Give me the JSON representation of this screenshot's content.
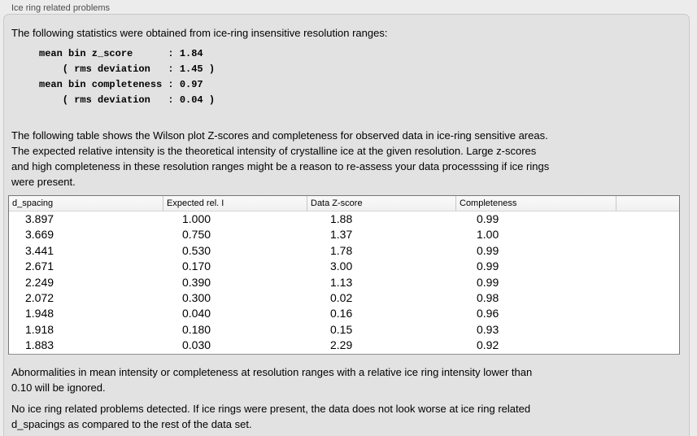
{
  "colors": {
    "page_bg": "#ececec",
    "panel_bg": "#e2e2e2",
    "panel_border": "#c9c9c9",
    "table_border": "#767676",
    "header_separator": "#c8c8c8",
    "row_bg": "#ffffff",
    "text": "#000000",
    "title_text": "#4c4c4c"
  },
  "panel": {
    "title": "Ice ring related problems"
  },
  "sections": {
    "intro": "The following statistics were obtained from ice-ring insensitive resolution ranges:",
    "stats_block": "mean bin z_score      : 1.84\n    ( rms deviation   : 1.45 )\nmean bin completeness : 0.97\n    ( rms deviation   : 0.04 )",
    "table_description": "The following table shows the Wilson plot Z-scores and completeness for observed data in ice-ring sensitive areas.\nThe expected relative intensity is the theoretical intensity of crystalline ice at the given resolution. Large z-scores\nand high completeness in these resolution ranges might be a reason to re-assess your data processsing if ice rings\nwere present.",
    "footnote": "Abnormalities in mean intensity or completeness at resolution ranges with a relative ice ring intensity lower than\n0.10 will be ignored.",
    "conclusion": "No ice ring related problems detected. If ice rings were present, the data does not look worse at ice ring related\nd_spacings as compared to the rest of the data set."
  },
  "table": {
    "columns": [
      "d_spacing",
      "Expected rel. I",
      "Data Z-score",
      "Completeness"
    ],
    "rows": [
      [
        "3.897",
        "1.000",
        "1.88",
        "0.99"
      ],
      [
        "3.669",
        "0.750",
        "1.37",
        "1.00"
      ],
      [
        "3.441",
        "0.530",
        "1.78",
        "0.99"
      ],
      [
        "2.671",
        "0.170",
        "3.00",
        "0.99"
      ],
      [
        "2.249",
        "0.390",
        "1.13",
        "0.99"
      ],
      [
        "2.072",
        "0.300",
        "0.02",
        "0.98"
      ],
      [
        "1.948",
        "0.040",
        "0.16",
        "0.96"
      ],
      [
        "1.918",
        "0.180",
        "0.15",
        "0.93"
      ],
      [
        "1.883",
        "0.030",
        "2.29",
        "0.92"
      ]
    ]
  }
}
